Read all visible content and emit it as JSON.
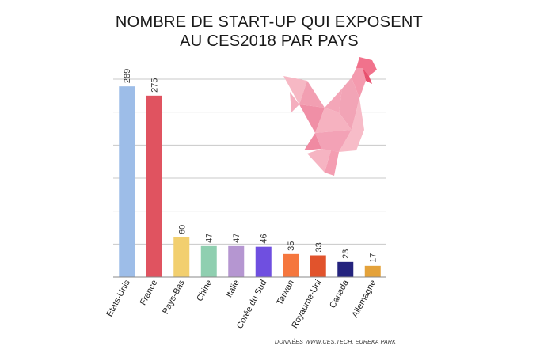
{
  "title": {
    "line1": "NOMBRE DE START-UP QUI EXPOSENT",
    "line2": "AU CES2018  PAR PAYS"
  },
  "source": "DONNÉES WWW.CES.TECH,  EUREKA PARK",
  "decoration": {
    "icon": "origami-rooster-icon",
    "color": "#f4a0b0"
  },
  "chart_data": {
    "type": "bar",
    "title": "NOMBRE DE START-UP QUI EXPOSENT AU CES2018  PAR PAYS",
    "categories": [
      "Etats-Unis",
      "France",
      "Pays-Bas",
      "Chine",
      "Italie",
      "Corée du Sud",
      "Taiwan",
      "Royaume-Uni",
      "Canada",
      "Allemagne"
    ],
    "values": [
      289,
      275,
      60,
      47,
      47,
      46,
      35,
      33,
      23,
      17
    ],
    "colors": [
      "#9dbde8",
      "#e05360",
      "#f2cf6f",
      "#8fcfb0",
      "#b596d1",
      "#6f4fe0",
      "#f5773e",
      "#e1532c",
      "#24237e",
      "#e4a23a"
    ],
    "ylim": [
      0,
      300
    ],
    "grid": true,
    "value_labels": true,
    "legend": "none"
  }
}
